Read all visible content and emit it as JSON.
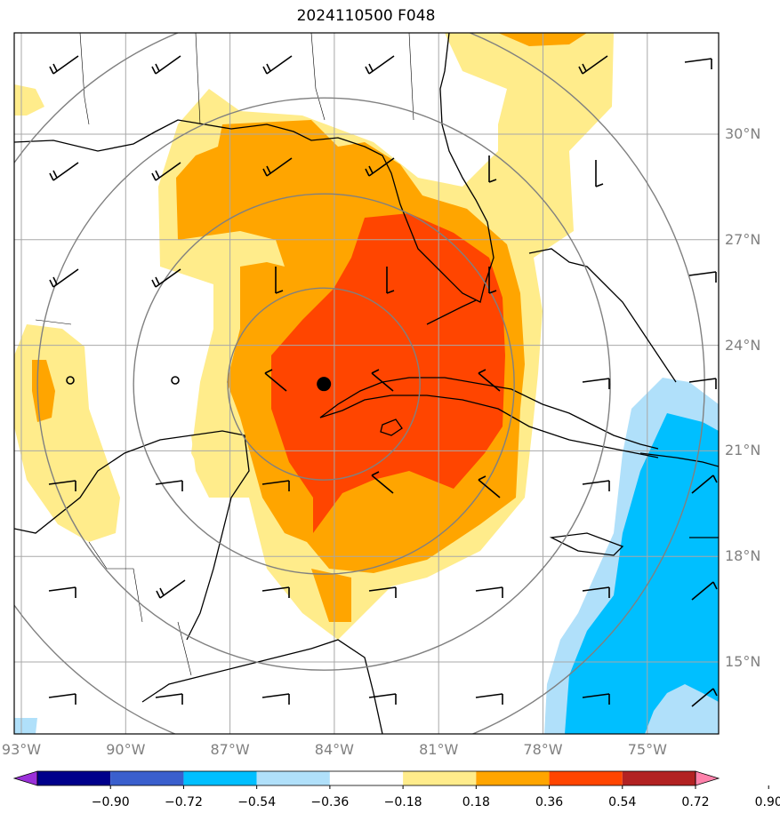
{
  "title": "2024110500 F048",
  "storm_center": {
    "lat": 22.9,
    "lon": -84.3
  },
  "lat_labels": [
    {
      "lat": 30,
      "text": "30°N"
    },
    {
      "lat": 27,
      "text": "27°N"
    },
    {
      "lat": 24,
      "text": "24°N"
    },
    {
      "lat": 21,
      "text": "21°N"
    },
    {
      "lat": 18,
      "text": "18°N"
    },
    {
      "lat": 15,
      "text": "15°N"
    }
  ],
  "lon_labels": [
    {
      "lon": -93,
      "text": "93°W"
    },
    {
      "lon": -90,
      "text": "90°W"
    },
    {
      "lon": -87,
      "text": "87°W"
    },
    {
      "lon": -84,
      "text": "84°W"
    },
    {
      "lon": -81,
      "text": "81°W"
    },
    {
      "lon": -78,
      "text": "78°W"
    },
    {
      "lon": -75,
      "text": "75°W"
    }
  ],
  "colorbar": {
    "ticks": [
      "−0.90",
      "−0.72",
      "−0.54",
      "−0.36",
      "−0.18",
      "0.18",
      "0.36",
      "0.54",
      "0.72",
      "0.90"
    ],
    "colors": [
      "#9b30d9",
      "#00008b",
      "#3a5fcd",
      "#00bfff",
      "#b0e0fa",
      "#ffffff",
      "#ffec8b",
      "#ffa500",
      "#ff4500",
      "#b22222",
      "#ff82ab"
    ]
  },
  "colors": {
    "pos_low": "#ffec8b",
    "pos_mid": "#ffa500",
    "pos_high": "#ff4500",
    "neg_low": "#b0e0fa",
    "neg_mid": "#00bfff",
    "grid": "#909090",
    "rings": "#808080"
  }
}
